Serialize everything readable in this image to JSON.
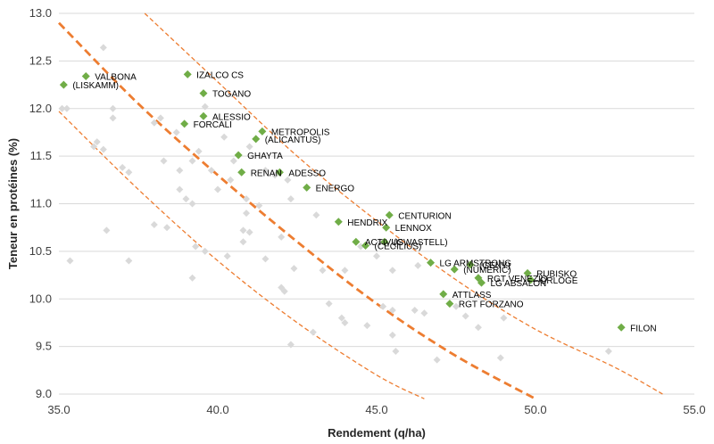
{
  "chart_data": {
    "type": "scatter",
    "xlabel": "Rendement (q/ha)",
    "ylabel": "Teneur en protéines (%)",
    "xlim": [
      35.0,
      55.0
    ],
    "ylim": [
      9.0,
      13.0
    ],
    "x_ticks": [
      "35.0",
      "40.0",
      "45.0",
      "50.0",
      "55.0"
    ],
    "y_ticks": [
      "9.0",
      "9.5",
      "10.0",
      "10.5",
      "11.0",
      "11.5",
      "12.0",
      "12.5",
      "13.0"
    ],
    "grid": "horizontal",
    "colors": {
      "highlight": "#70AD47",
      "background": "#D9D9D9",
      "trend": "#ED7D31",
      "grid": "#D9D9D9"
    },
    "series": [
      {
        "marker": "diamond",
        "color": "#70AD47",
        "points": [
          {
            "label": "VALBONA",
            "x": 35.85,
            "y": 12.34
          },
          {
            "label": "(LISKAMM)",
            "x": 35.15,
            "y": 12.25
          },
          {
            "label": "IZALCO CS",
            "x": 39.05,
            "y": 12.36
          },
          {
            "label": "TOGANO",
            "x": 39.55,
            "y": 12.16
          },
          {
            "label": "ALESSIO",
            "x": 39.55,
            "y": 11.92
          },
          {
            "label": "FORCALI",
            "x": 38.95,
            "y": 11.84
          },
          {
            "label": "METROPOLIS",
            "x": 41.4,
            "y": 11.76
          },
          {
            "label": "(ALICANTUS)",
            "x": 41.2,
            "y": 11.68
          },
          {
            "label": "GHAYTA",
            "x": 40.65,
            "y": 11.51
          },
          {
            "label": "RENAN",
            "x": 40.75,
            "y": 11.33
          },
          {
            "label": "ADESSO",
            "x": 41.95,
            "y": 11.33
          },
          {
            "label": "ENERGO",
            "x": 42.8,
            "y": 11.17
          },
          {
            "label": "CENTURION",
            "x": 45.4,
            "y": 10.88
          },
          {
            "label": "HENDRIX",
            "x": 43.8,
            "y": 10.81
          },
          {
            "label": "LENNOX",
            "x": 45.3,
            "y": 10.75
          },
          {
            "label": "ACTIVUS",
            "x": 44.35,
            "y": 10.6
          },
          {
            "label": "(GWASTELL)",
            "x": 45.25,
            "y": 10.6
          },
          {
            "label": "(CECILIUS)",
            "x": 44.65,
            "y": 10.56
          },
          {
            "label": "LG ARMSTRONG",
            "x": 46.7,
            "y": 10.38
          },
          {
            "label": "(GENY)",
            "x": 47.95,
            "y": 10.36
          },
          {
            "label": "(NUMERIC)",
            "x": 47.45,
            "y": 10.31
          },
          {
            "label": "RUBISKO",
            "x": 49.75,
            "y": 10.27
          },
          {
            "label": "RGT VENEZIO",
            "x": 48.2,
            "y": 10.22
          },
          {
            "label": "ORLOGE",
            "x": 49.85,
            "y": 10.2
          },
          {
            "label": "LG ABSALON",
            "x": 48.3,
            "y": 10.17
          },
          {
            "label": "ATTLASS",
            "x": 47.1,
            "y": 10.05
          },
          {
            "label": "RGT FORZANO",
            "x": 47.3,
            "y": 9.95
          },
          {
            "label": "FILON",
            "x": 52.7,
            "y": 9.7
          }
        ]
      },
      {
        "marker": "diamond",
        "color": "#D9D9D9",
        "points": [
          {
            "x": 36.4,
            "y": 12.64
          },
          {
            "x": 35.1,
            "y": 12.0
          },
          {
            "x": 35.25,
            "y": 12.0
          },
          {
            "x": 36.7,
            "y": 12.0
          },
          {
            "x": 36.7,
            "y": 11.9
          },
          {
            "x": 38.0,
            "y": 11.85
          },
          {
            "x": 38.2,
            "y": 11.9
          },
          {
            "x": 38.7,
            "y": 11.75
          },
          {
            "x": 39.6,
            "y": 12.02
          },
          {
            "x": 36.2,
            "y": 11.65
          },
          {
            "x": 36.4,
            "y": 11.57
          },
          {
            "x": 36.1,
            "y": 11.6
          },
          {
            "x": 37.0,
            "y": 11.38
          },
          {
            "x": 37.2,
            "y": 11.33
          },
          {
            "x": 38.3,
            "y": 11.45
          },
          {
            "x": 38.8,
            "y": 11.35
          },
          {
            "x": 39.2,
            "y": 11.45
          },
          {
            "x": 39.4,
            "y": 11.55
          },
          {
            "x": 39.8,
            "y": 11.35
          },
          {
            "x": 40.5,
            "y": 11.45
          },
          {
            "x": 40.2,
            "y": 11.7
          },
          {
            "x": 41.0,
            "y": 11.6
          },
          {
            "x": 41.5,
            "y": 11.35
          },
          {
            "x": 41.8,
            "y": 11.3
          },
          {
            "x": 42.2,
            "y": 11.25
          },
          {
            "x": 40.4,
            "y": 11.25
          },
          {
            "x": 38.8,
            "y": 11.15
          },
          {
            "x": 39.0,
            "y": 11.05
          },
          {
            "x": 40.0,
            "y": 11.15
          },
          {
            "x": 40.9,
            "y": 11.05
          },
          {
            "x": 41.3,
            "y": 10.98
          },
          {
            "x": 40.9,
            "y": 10.9
          },
          {
            "x": 39.2,
            "y": 11.0
          },
          {
            "x": 42.3,
            "y": 11.05
          },
          {
            "x": 43.1,
            "y": 10.88
          },
          {
            "x": 36.5,
            "y": 10.72
          },
          {
            "x": 38.0,
            "y": 10.78
          },
          {
            "x": 38.4,
            "y": 10.75
          },
          {
            "x": 39.3,
            "y": 10.55
          },
          {
            "x": 39.6,
            "y": 10.5
          },
          {
            "x": 40.3,
            "y": 10.45
          },
          {
            "x": 40.8,
            "y": 10.72
          },
          {
            "x": 41.0,
            "y": 10.7
          },
          {
            "x": 40.8,
            "y": 10.6
          },
          {
            "x": 42.0,
            "y": 10.65
          },
          {
            "x": 42.4,
            "y": 10.32
          },
          {
            "x": 43.3,
            "y": 10.3
          },
          {
            "x": 44.0,
            "y": 10.3
          },
          {
            "x": 44.5,
            "y": 10.55
          },
          {
            "x": 45.0,
            "y": 10.45
          },
          {
            "x": 45.5,
            "y": 10.3
          },
          {
            "x": 46.3,
            "y": 10.35
          },
          {
            "x": 35.35,
            "y": 10.4
          },
          {
            "x": 37.2,
            "y": 10.4
          },
          {
            "x": 39.2,
            "y": 10.22
          },
          {
            "x": 41.5,
            "y": 10.42
          },
          {
            "x": 42.0,
            "y": 10.12
          },
          {
            "x": 42.1,
            "y": 10.08
          },
          {
            "x": 43.5,
            "y": 9.95
          },
          {
            "x": 43.9,
            "y": 9.8
          },
          {
            "x": 44.0,
            "y": 9.75
          },
          {
            "x": 45.2,
            "y": 9.92
          },
          {
            "x": 45.5,
            "y": 9.88
          },
          {
            "x": 46.2,
            "y": 9.88
          },
          {
            "x": 47.5,
            "y": 9.92
          },
          {
            "x": 47.8,
            "y": 9.82
          },
          {
            "x": 49.0,
            "y": 9.8
          },
          {
            "x": 48.2,
            "y": 9.7
          },
          {
            "x": 46.5,
            "y": 9.85
          },
          {
            "x": 44.7,
            "y": 9.72
          },
          {
            "x": 42.3,
            "y": 9.52
          },
          {
            "x": 43.0,
            "y": 9.65
          },
          {
            "x": 45.5,
            "y": 9.62
          },
          {
            "x": 45.6,
            "y": 9.45
          },
          {
            "x": 46.9,
            "y": 9.36
          },
          {
            "x": 48.9,
            "y": 9.38
          },
          {
            "x": 52.3,
            "y": 9.45
          },
          {
            "x": 45.1,
            "y": 10.6
          }
        ]
      }
    ],
    "trend_lines": [
      {
        "style": "thick-dashed",
        "points": [
          [
            35.0,
            12.9
          ],
          [
            37.5,
            12.05
          ],
          [
            40.0,
            11.3
          ],
          [
            42.5,
            10.6
          ],
          [
            45.0,
            9.95
          ],
          [
            47.5,
            9.4
          ],
          [
            50.0,
            8.95
          ]
        ]
      },
      {
        "style": "thin-dashed",
        "points": [
          [
            37.7,
            13.0
          ],
          [
            40.0,
            12.28
          ],
          [
            42.5,
            11.5
          ],
          [
            45.0,
            10.82
          ],
          [
            47.5,
            10.2
          ],
          [
            50.0,
            9.68
          ],
          [
            52.5,
            9.28
          ],
          [
            54.0,
            9.0
          ]
        ]
      },
      {
        "style": "thin-dashed",
        "points": [
          [
            35.0,
            11.97
          ],
          [
            37.5,
            11.15
          ],
          [
            40.0,
            10.4
          ],
          [
            42.5,
            9.75
          ],
          [
            45.0,
            9.2
          ],
          [
            46.5,
            8.95
          ]
        ]
      }
    ]
  }
}
